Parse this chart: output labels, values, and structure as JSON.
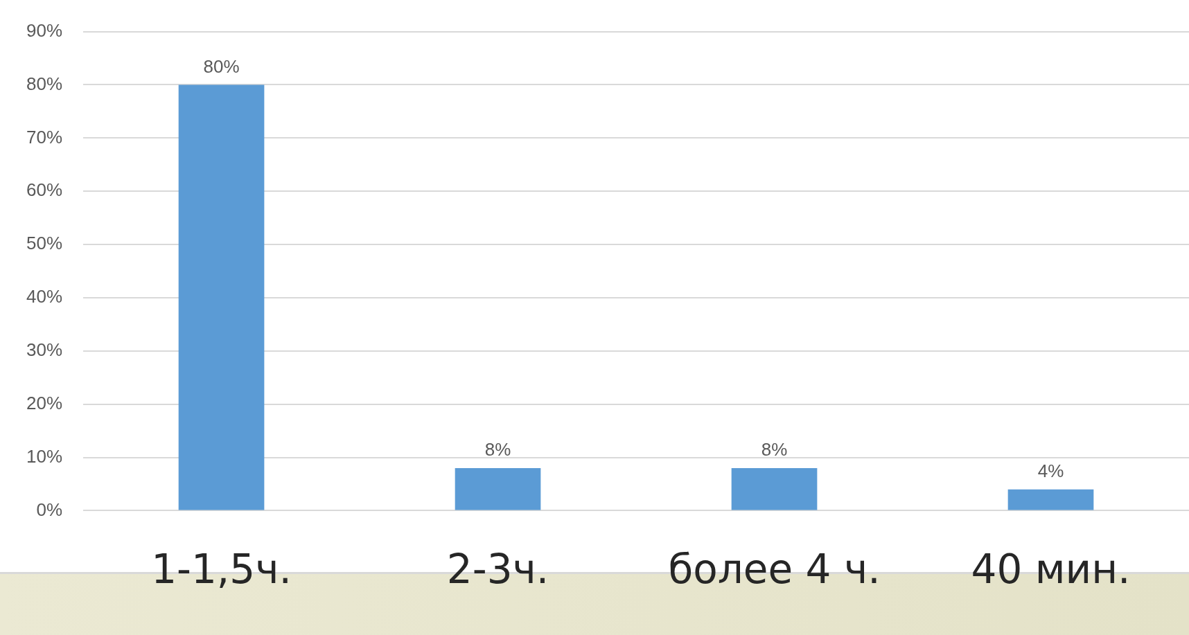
{
  "chart_data": {
    "type": "bar",
    "categories": [
      "1-1,5ч.",
      "2-3ч.",
      "более 4 ч.",
      "40 мин."
    ],
    "values": [
      80,
      8,
      8,
      4
    ],
    "color": "#5b9bd5",
    "value_labels": [
      "80%",
      "8%",
      "8%",
      "4%"
    ],
    "ylim": [
      0,
      90
    ],
    "yticks": [
      {
        "value": 0,
        "label": "0%"
      },
      {
        "value": 10,
        "label": "10%"
      },
      {
        "value": 20,
        "label": "20%"
      },
      {
        "value": 30,
        "label": "30%"
      },
      {
        "value": 40,
        "label": "40%"
      },
      {
        "value": 50,
        "label": "50%"
      },
      {
        "value": 60,
        "label": "60%"
      },
      {
        "value": 70,
        "label": "70%"
      },
      {
        "value": 80,
        "label": "80%"
      },
      {
        "value": 90,
        "label": "90%"
      }
    ],
    "grid": "y",
    "legend": false
  }
}
